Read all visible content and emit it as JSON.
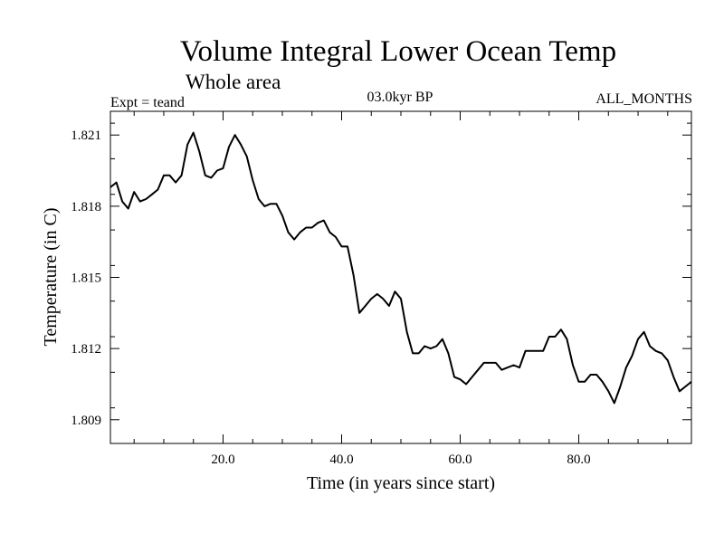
{
  "chart_data": {
    "type": "line",
    "title": "Volume Integral Lower Ocean Temp",
    "subtitle": "Whole area",
    "header_left": "Expt = teand",
    "header_center": "03.0kyr BP",
    "header_right": "ALL_MONTHS",
    "xlabel": "Time (in years since start)",
    "ylabel": "Temperature (in C)",
    "xlim": [
      1,
      99
    ],
    "ylim": [
      1.808,
      1.822
    ],
    "xticks": [
      20,
      40,
      60,
      80
    ],
    "xtick_labels": [
      "20.0",
      "40.0",
      "60.0",
      "80.0"
    ],
    "yticks": [
      1.809,
      1.812,
      1.815,
      1.818,
      1.821
    ],
    "ytick_labels": [
      "1.809",
      "1.812",
      "1.815",
      "1.818",
      "1.821"
    ],
    "grid": false,
    "series": [
      {
        "name": "Temperature",
        "color": "#000000",
        "x": [
          1,
          2,
          3,
          4,
          5,
          6,
          7,
          8,
          9,
          10,
          11,
          12,
          13,
          14,
          15,
          16,
          17,
          18,
          19,
          20,
          21,
          22,
          23,
          24,
          25,
          26,
          27,
          28,
          29,
          30,
          31,
          32,
          33,
          34,
          35,
          36,
          37,
          38,
          39,
          40,
          41,
          42,
          43,
          44,
          45,
          46,
          47,
          48,
          49,
          50,
          51,
          52,
          53,
          54,
          55,
          56,
          57,
          58,
          59,
          60,
          61,
          62,
          63,
          64,
          65,
          66,
          67,
          68,
          69,
          70,
          71,
          72,
          73,
          74,
          75,
          76,
          77,
          78,
          79,
          80,
          81,
          82,
          83,
          84,
          85,
          86,
          87,
          88,
          89,
          90,
          91,
          92,
          93,
          94,
          95,
          96,
          97,
          98,
          99
        ],
        "values": [
          1.8188,
          1.819,
          1.8182,
          1.8179,
          1.8186,
          1.8182,
          1.8183,
          1.8185,
          1.8187,
          1.8193,
          1.8193,
          1.819,
          1.8193,
          1.8206,
          1.8211,
          1.8203,
          1.8193,
          1.8192,
          1.8195,
          1.8196,
          1.8205,
          1.821,
          1.8206,
          1.8201,
          1.8191,
          1.8183,
          1.818,
          1.8181,
          1.8181,
          1.8176,
          1.8169,
          1.8166,
          1.8169,
          1.8171,
          1.8171,
          1.8173,
          1.8174,
          1.8169,
          1.8167,
          1.8163,
          1.8163,
          1.8151,
          1.8135,
          1.8138,
          1.8141,
          1.8143,
          1.8141,
          1.8138,
          1.8144,
          1.8141,
          1.8127,
          1.8118,
          1.8118,
          1.8121,
          1.812,
          1.8121,
          1.8124,
          1.8118,
          1.8108,
          1.8107,
          1.8105,
          1.8108,
          1.8111,
          1.8114,
          1.8114,
          1.8114,
          1.8111,
          1.8112,
          1.8113,
          1.8112,
          1.8119,
          1.8119,
          1.8119,
          1.8119,
          1.8125,
          1.8125,
          1.8128,
          1.8124,
          1.8113,
          1.8106,
          1.8106,
          1.8109,
          1.8109,
          1.8106,
          1.8102,
          1.8097,
          1.8104,
          1.8112,
          1.8117,
          1.8124,
          1.8127,
          1.8121,
          1.8119,
          1.8118,
          1.8115,
          1.8108,
          1.8102,
          1.8104,
          1.8106
        ]
      }
    ]
  }
}
